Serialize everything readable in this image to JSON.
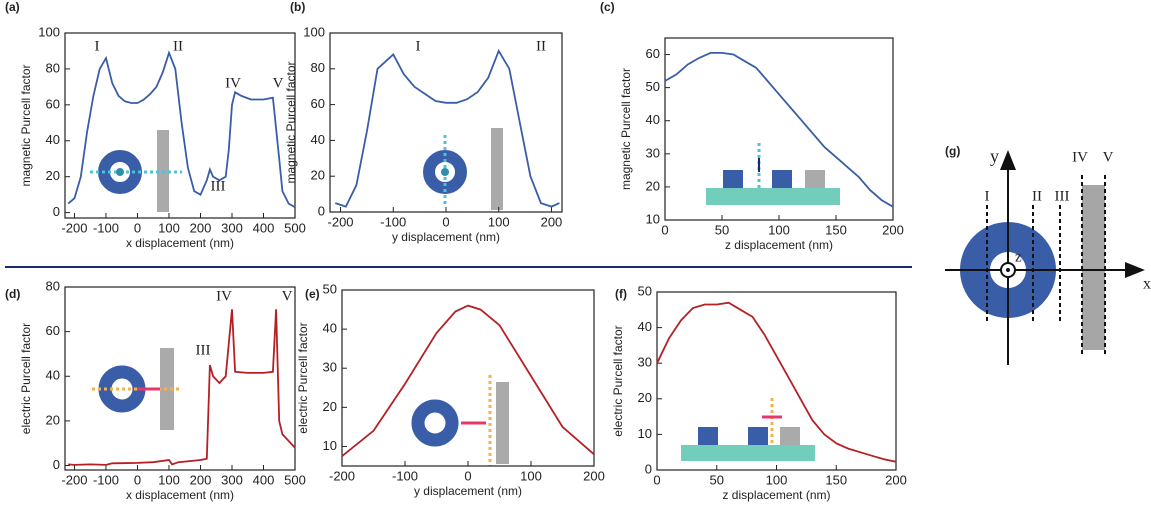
{
  "chart_data": [
    {
      "type": "line",
      "label": "(a)",
      "xlabel": "x displacement (nm)",
      "ylabel": "magnetic Purcell factor",
      "color": "#3a5da8",
      "x": [
        -220,
        -200,
        -180,
        -160,
        -140,
        -120,
        -100,
        -80,
        -60,
        -40,
        -20,
        0,
        20,
        40,
        60,
        80,
        100,
        120,
        140,
        160,
        180,
        200,
        220,
        230,
        240,
        260,
        280,
        290,
        300,
        310,
        330,
        360,
        400,
        430,
        450,
        460,
        480,
        500
      ],
      "values": [
        5,
        8,
        20,
        45,
        65,
        80,
        86,
        72,
        65,
        62,
        61,
        61,
        63,
        66,
        70,
        78,
        89,
        80,
        50,
        25,
        12,
        10,
        18,
        24,
        20,
        18,
        20,
        35,
        60,
        67,
        65,
        63,
        63,
        64,
        30,
        12,
        5,
        3
      ],
      "xlim": [
        -230,
        500
      ],
      "xticks": [
        -200,
        -100,
        0,
        100,
        200,
        300,
        400,
        500
      ],
      "ylim": [
        -3,
        100
      ],
      "yticks": [
        0,
        20,
        40,
        60,
        80,
        100
      ],
      "annotations": [
        "I",
        "II",
        "III",
        "IV",
        "V"
      ]
    },
    {
      "type": "line",
      "label": "(b)",
      "xlabel": "y displacement (nm)",
      "ylabel": "magnetic Purcell factor",
      "color": "#3a5da8",
      "x": [
        -210,
        -190,
        -170,
        -150,
        -130,
        -100,
        -80,
        -60,
        -40,
        -20,
        0,
        20,
        40,
        60,
        80,
        100,
        120,
        140,
        160,
        180,
        200,
        215
      ],
      "values": [
        5,
        3,
        15,
        45,
        80,
        88,
        77,
        70,
        66,
        62,
        61,
        61,
        63,
        67,
        75,
        90,
        80,
        50,
        20,
        5,
        3,
        5
      ],
      "xlim": [
        -220,
        220
      ],
      "xticks": [
        -200,
        -100,
        0,
        100,
        200
      ],
      "ylim": [
        0,
        100
      ],
      "yticks": [
        0,
        20,
        40,
        60,
        80,
        100
      ],
      "annotations": [
        "I",
        "II"
      ]
    },
    {
      "type": "line",
      "label": "(c)",
      "xlabel": "z displacement (nm)",
      "ylabel": "magnetic Purcell factor",
      "color": "#3a5da8",
      "x": [
        0,
        10,
        20,
        30,
        40,
        50,
        60,
        70,
        80,
        90,
        100,
        110,
        120,
        130,
        140,
        150,
        160,
        170,
        180,
        190,
        200
      ],
      "values": [
        52,
        54,
        57,
        59,
        60.5,
        60.5,
        60,
        58,
        56,
        52,
        48,
        44,
        40,
        36,
        32,
        29,
        26,
        23,
        19,
        16,
        14
      ],
      "xlim": [
        0,
        200
      ],
      "xticks": [
        0,
        50,
        100,
        150,
        200
      ],
      "ylim": [
        10,
        65
      ],
      "yticks": [
        10,
        20,
        30,
        40,
        50,
        60
      ]
    },
    {
      "type": "line",
      "label": "(d)",
      "xlabel": "x displacement (nm)",
      "ylabel": "electric Purcell factor",
      "color": "#b52025",
      "x": [
        -220,
        -200,
        -150,
        -100,
        -80,
        0,
        50,
        100,
        110,
        130,
        200,
        220,
        230,
        240,
        260,
        280,
        300,
        310,
        350,
        400,
        430,
        440,
        450,
        460,
        500
      ],
      "values": [
        0.5,
        0.3,
        0.5,
        0.3,
        1,
        1.2,
        1.5,
        2.5,
        0.5,
        1.5,
        2.5,
        3,
        45,
        40,
        37,
        40,
        70,
        42,
        41.5,
        41.5,
        42,
        70,
        20,
        14,
        8
      ],
      "xlim": [
        -230,
        500
      ],
      "xticks": [
        -200,
        -100,
        0,
        100,
        200,
        300,
        400,
        500
      ],
      "ylim": [
        -2,
        80
      ],
      "yticks": [
        0,
        20,
        40,
        60,
        80
      ],
      "annotations": [
        "III",
        "IV",
        "V"
      ]
    },
    {
      "type": "line",
      "label": "(e)",
      "xlabel": "y displacement (nm)",
      "ylabel": "electric Purcell factor",
      "color": "#b52025",
      "x": [
        -200,
        -150,
        -100,
        -50,
        -20,
        0,
        20,
        50,
        100,
        150,
        200
      ],
      "values": [
        7.5,
        14,
        26,
        39,
        44.5,
        46,
        45,
        41,
        28,
        15,
        8
      ],
      "xlim": [
        -200,
        200
      ],
      "xticks": [
        -200,
        -100,
        0,
        100,
        200
      ],
      "ylim": [
        5,
        50
      ],
      "yticks": [
        10,
        20,
        30,
        40,
        50
      ]
    },
    {
      "type": "line",
      "label": "(f)",
      "xlabel": "z displacement (nm)",
      "ylabel": "electric Purcell factor",
      "color": "#b52025",
      "x": [
        0,
        10,
        20,
        30,
        40,
        50,
        60,
        70,
        80,
        90,
        100,
        110,
        120,
        130,
        140,
        150,
        160,
        170,
        180,
        190,
        200
      ],
      "values": [
        30,
        37,
        42,
        45.5,
        46.5,
        46.5,
        47,
        45,
        43,
        38,
        32,
        26,
        20,
        14,
        10,
        7.5,
        6,
        5,
        4,
        3,
        2.3
      ],
      "xlim": [
        0,
        200
      ],
      "xticks": [
        0,
        50,
        100,
        150,
        200
      ],
      "ylim": [
        0,
        50
      ],
      "yticks": [
        0,
        10,
        20,
        30,
        40,
        50
      ]
    }
  ],
  "diagram": {
    "label": "(g)",
    "y_axis": "y",
    "z_axis": "z",
    "x_axis": "x",
    "lines": [
      "I",
      "II",
      "III",
      "IV",
      "V"
    ]
  }
}
